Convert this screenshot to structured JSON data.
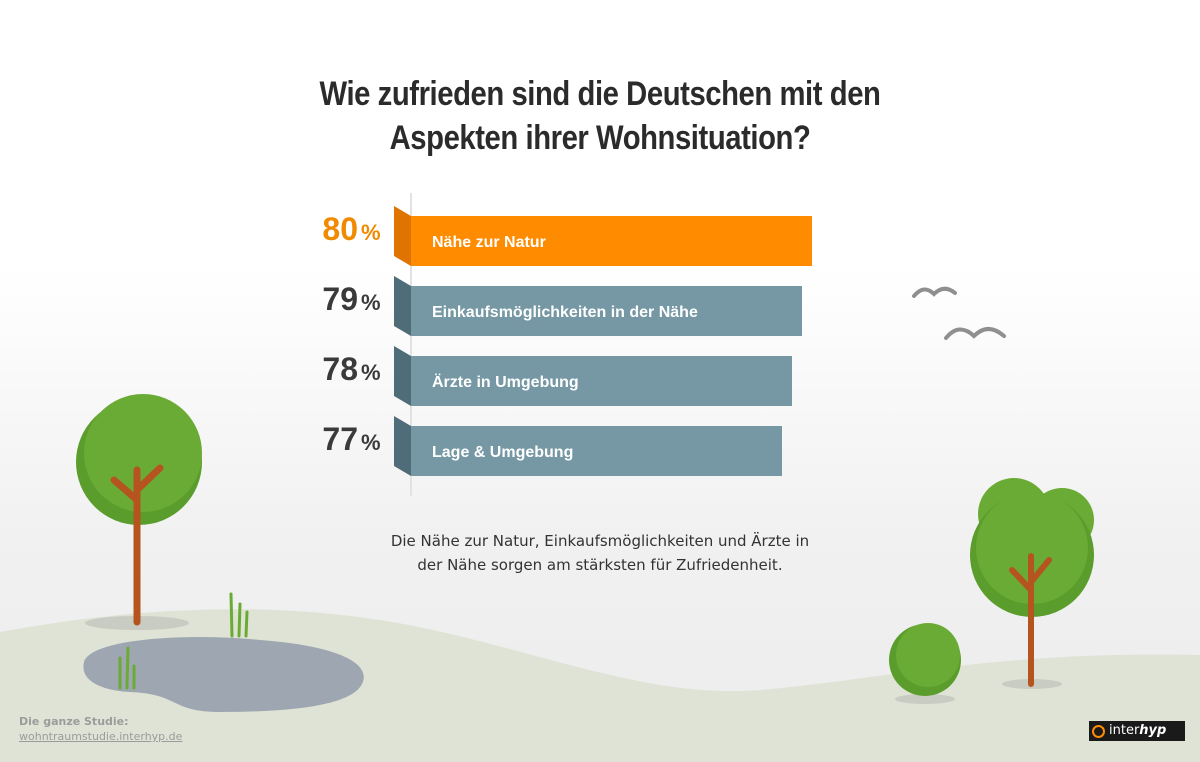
{
  "title": {
    "line1": "Wie zufrieden sind die Deutschen mit den",
    "line2": "Aspekten ihrer Wohnsituation?"
  },
  "caption": {
    "line1": "Die Nähe zur Natur, Einkaufsmöglichkeiten und Ärzte in",
    "line2": "der Nähe sorgen am stärksten für Zufriedenheit."
  },
  "footer": {
    "label": "Die ganze Studie:",
    "link": "wohntraumstudie.interhyp.de"
  },
  "logo": {
    "prefix": "inter",
    "suffix": "hyp"
  },
  "colors": {
    "highlight": "#ff8c00",
    "bar": "#7598a4",
    "bar_fold_highlight": "#e07400",
    "bar_fold": "#4f6d78",
    "value_highlight": "#f08a00",
    "value": "#3a3a3a"
  },
  "chart_data": {
    "type": "bar",
    "orientation": "horizontal",
    "categories": [
      "Nähe zur Natur",
      "Einkaufsmöglichkeiten in der Nähe",
      "Ärzte in Umgebung",
      "Lage & Umgebung"
    ],
    "values": [
      80,
      79,
      78,
      77
    ],
    "unit": "%",
    "highlight_index": 0,
    "grid": false
  }
}
